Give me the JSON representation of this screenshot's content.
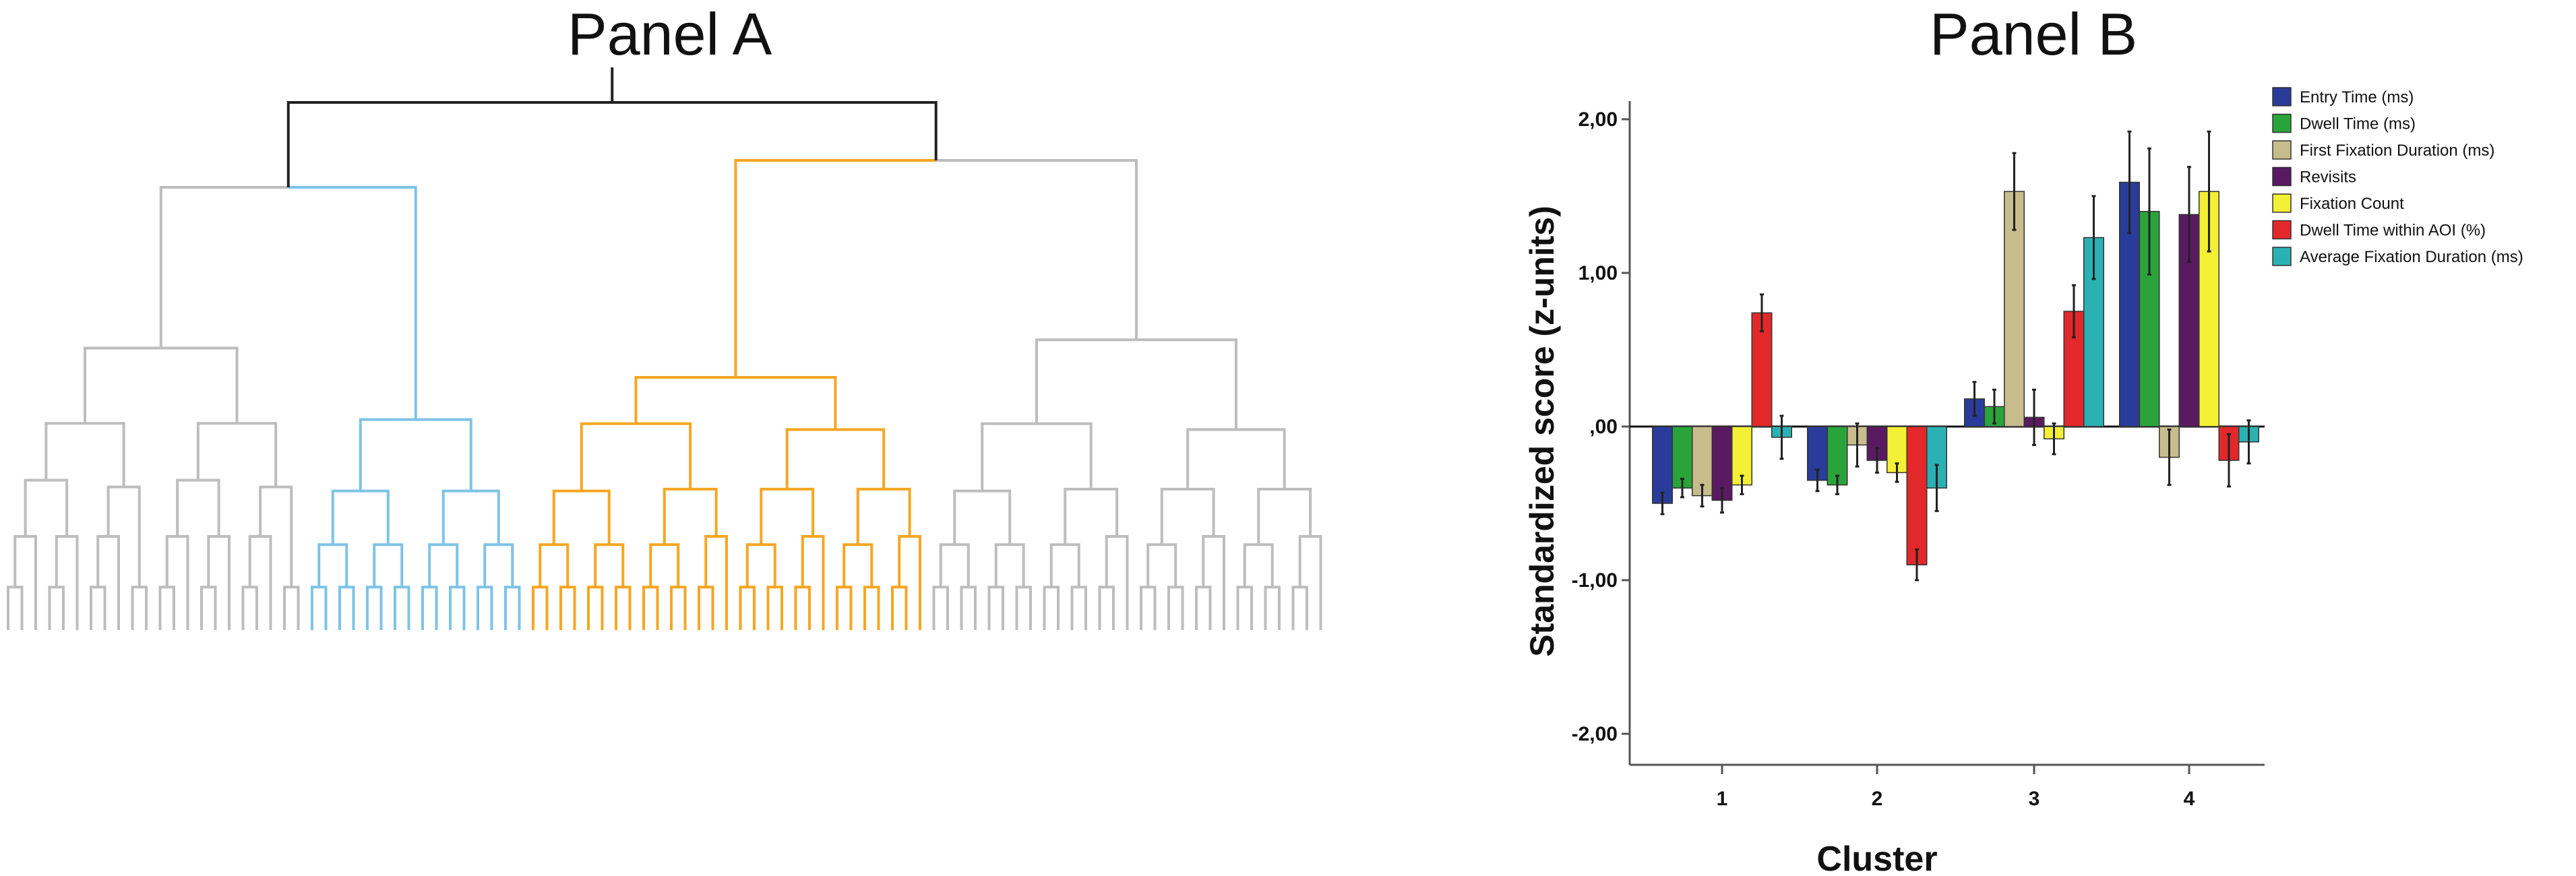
{
  "panel_a": {
    "title": "Panel A"
  },
  "panel_b": {
    "title": "Panel B"
  },
  "colors": {
    "dendrogram_root": "#222222",
    "dendrogram_gray": "#bdbdbd",
    "dendrogram_blue": "#7ec3e6",
    "dendrogram_orange": "#f5a623"
  },
  "dendrogram": {
    "clusters": [
      {
        "name": "cluster-gray-left",
        "color": "#bdbdbd",
        "leaves": 22
      },
      {
        "name": "cluster-blue",
        "color": "#7ec3e6",
        "leaves": 16
      },
      {
        "name": "cluster-orange",
        "color": "#f5a623",
        "leaves": 29
      },
      {
        "name": "cluster-gray-right",
        "color": "#bdbdbd",
        "leaves": 29
      }
    ]
  },
  "chart_data": {
    "type": "bar",
    "title": "",
    "xlabel": "Cluster",
    "ylabel": "Standardized score (z-units)",
    "categories": [
      "1",
      "2",
      "3",
      "4"
    ],
    "ylim": [
      -2.2,
      2.0
    ],
    "yticks": [
      -2,
      -1,
      0,
      1,
      2
    ],
    "ytick_labels": [
      "-2,00",
      "-1,00",
      ",00",
      "1,00",
      "2,00"
    ],
    "series": [
      {
        "name": "Entry Time (ms)",
        "color": "#2a3c9a",
        "values": [
          -0.5,
          -0.35,
          0.18,
          1.59
        ],
        "error": [
          0.07,
          0.07,
          0.11,
          0.33
        ]
      },
      {
        "name": "Dwell Time (ms)",
        "color": "#2aa43a",
        "values": [
          -0.4,
          -0.38,
          0.13,
          1.4
        ],
        "error": [
          0.06,
          0.06,
          0.11,
          0.41
        ]
      },
      {
        "name": "First Fixation Duration (ms)",
        "color": "#c7bc8c",
        "values": [
          -0.45,
          -0.12,
          1.53,
          -0.2
        ],
        "error": [
          0.07,
          0.14,
          0.25,
          0.18
        ]
      },
      {
        "name": "Revisits",
        "color": "#5a1a62",
        "values": [
          -0.48,
          -0.22,
          0.06,
          1.38
        ],
        "error": [
          0.08,
          0.08,
          0.18,
          0.31
        ]
      },
      {
        "name": "Fixation Count",
        "color": "#f3f035",
        "values": [
          -0.38,
          -0.3,
          -0.08,
          1.53
        ],
        "error": [
          0.06,
          0.06,
          0.1,
          0.39
        ]
      },
      {
        "name": "Dwell Time within AOI (%)",
        "color": "#e3282b",
        "values": [
          0.74,
          -0.9,
          0.75,
          -0.22
        ],
        "error": [
          0.12,
          0.1,
          0.17,
          0.17
        ]
      },
      {
        "name": "Average Fixation Duration (ms)",
        "color": "#2bb1b3",
        "values": [
          -0.07,
          -0.4,
          1.23,
          -0.1
        ],
        "error": [
          0.14,
          0.15,
          0.27,
          0.14
        ]
      }
    ],
    "legend_position": "top-right"
  }
}
